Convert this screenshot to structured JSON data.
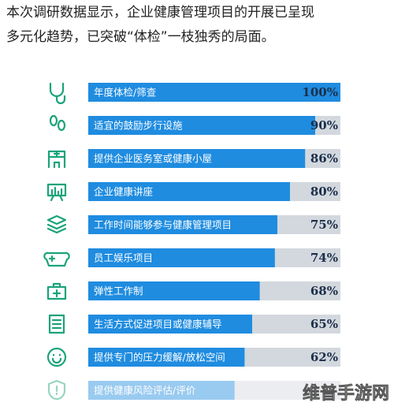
{
  "chart_data": {
    "type": "bar",
    "title_lines": [
      "本次调研数据显示，企业健康管理项目的开展已呈现",
      "多元化趋势，已突破“体检”一枝独秀的局面。"
    ],
    "categories": [
      "年度体检/筛查",
      "适宜的鼓励步行设施",
      "提供企业医务室或健康小屋",
      "企业健康讲座",
      "工作时间能够参与健康管理项目",
      "员工娱乐项目",
      "弹性工作制",
      "生活方式促进项目或健康辅导",
      "提供专门的压力缓解/放松空间",
      "提供健康风险评估/评价"
    ],
    "values": [
      100,
      90,
      86,
      80,
      75,
      74,
      68,
      65,
      62,
      58
    ],
    "value_labels": [
      "100%",
      "90%",
      "86%",
      "80%",
      "75%",
      "74%",
      "68%",
      "65%",
      "62%",
      null
    ],
    "xlim": [
      0,
      100
    ],
    "color": "#1f8ce0",
    "track_color": "#d3d8de",
    "icon_color": "#1aa37a",
    "watermark": "维普手游网"
  }
}
